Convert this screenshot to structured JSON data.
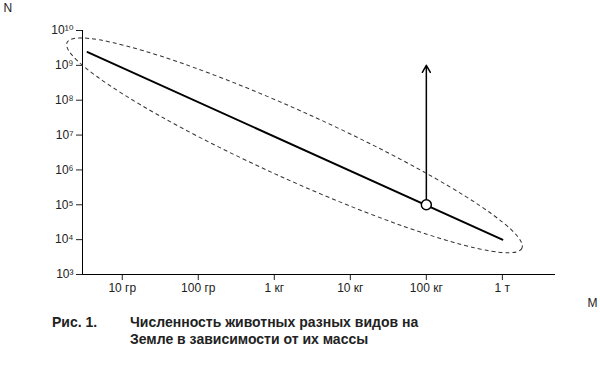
{
  "chart_data": {
    "type": "line",
    "figure_label": "Рис. 1.",
    "title": "Численность животных разных видов на Земле в зависимости от их массы",
    "x_label": "M",
    "y_label": "N",
    "log": true,
    "grid": false,
    "xlim": [
      0.003,
      5000
    ],
    "ylim": [
      1000,
      10000000000
    ],
    "xticks": [
      {
        "value": 0.01,
        "label": "10 гр"
      },
      {
        "value": 0.1,
        "label": "100 гр"
      },
      {
        "value": 1,
        "label": "1 кг"
      },
      {
        "value": 10,
        "label": "10 кг"
      },
      {
        "value": 100,
        "label": "100 кг"
      },
      {
        "value": 1000,
        "label": "1 т"
      }
    ],
    "yticks": [
      {
        "value": 1000,
        "label": "10³"
      },
      {
        "value": 10000,
        "label": "10⁴"
      },
      {
        "value": 100000,
        "label": "10⁵"
      },
      {
        "value": 1000000,
        "label": "10⁶"
      },
      {
        "value": 10000000,
        "label": "10⁷"
      },
      {
        "value": 100000000,
        "label": "10⁸"
      },
      {
        "value": 1000000000,
        "label": "10⁹"
      },
      {
        "value": 10000000000,
        "label": "10¹⁰"
      }
    ],
    "series": [
      {
        "type": "line",
        "color": "#000000",
        "x": [
          0.0035,
          1000
        ],
        "values": [
          2400000000,
          10000
        ]
      },
      {
        "type": "arrow",
        "color": "#000000",
        "x": [
          100,
          100
        ],
        "values": [
          100000,
          1000000000
        ]
      },
      {
        "type": "scatter",
        "marker": "open_circle",
        "color": "#000000",
        "x": [
          100
        ],
        "values": [
          100000
        ]
      }
    ]
  }
}
